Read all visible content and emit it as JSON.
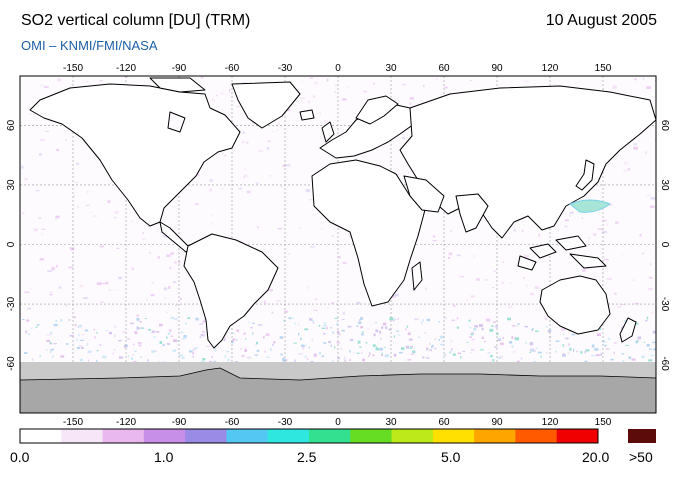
{
  "header": {
    "title": "SO2 vertical column [DU] (TRM)",
    "date": "10 August 2005",
    "credit": "OMI  –  KNMI/FMI/NASA"
  },
  "map": {
    "lon_ticks": [
      "-150",
      "-120",
      "-90",
      "-60",
      "-30",
      "0",
      "30",
      "60",
      "90",
      "120",
      "150"
    ],
    "lat_ticks": [
      "60",
      "30",
      "0",
      "-30",
      "-60"
    ]
  },
  "colorbar": {
    "labels": [
      "0.0",
      "1.0",
      "2.5",
      "5.0",
      "20.0"
    ],
    "overflow_label": ">50",
    "colors": [
      "#ffffff",
      "#f7e6f7",
      "#e8b8ef",
      "#c78fe8",
      "#9a8be6",
      "#54c8f2",
      "#2ee8e0",
      "#33e090",
      "#66dd22",
      "#bde81a",
      "#ffe000",
      "#ffa500",
      "#ff5a00",
      "#f00000"
    ],
    "overflow_color": "#5c0a0a"
  }
}
